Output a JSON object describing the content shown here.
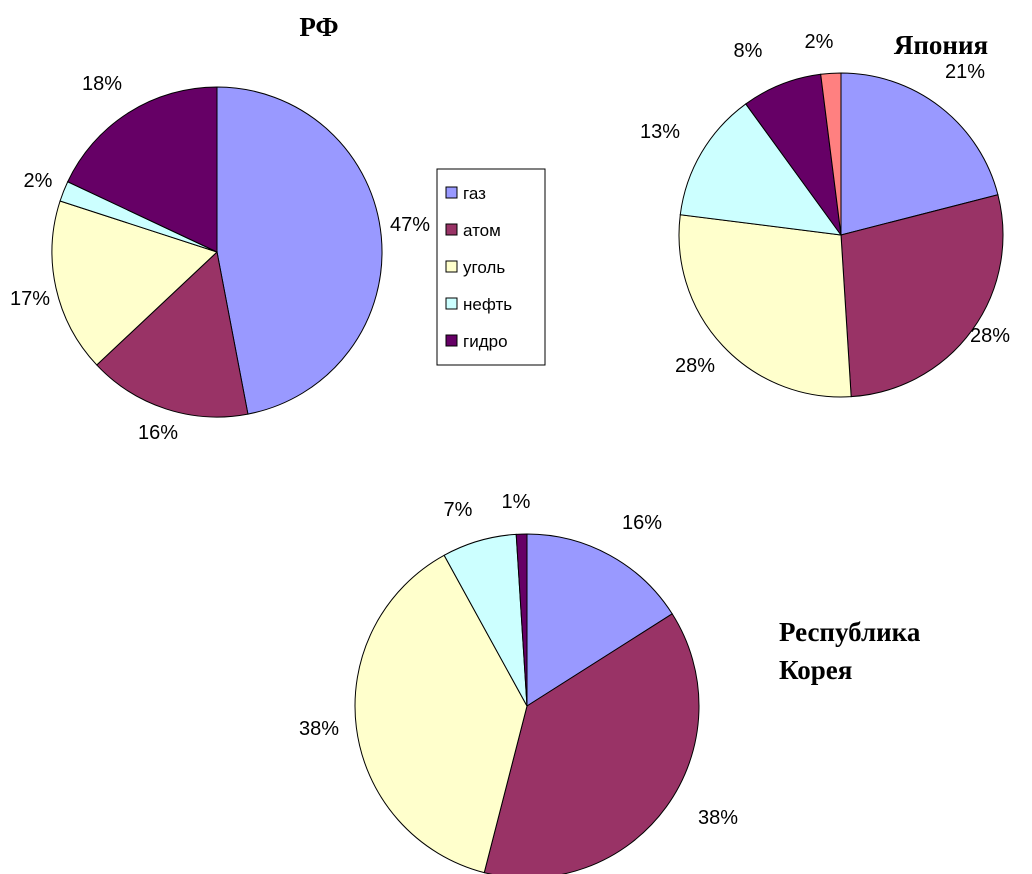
{
  "legend": {
    "entries": [
      {
        "label": "газ",
        "color": "#9999ff"
      },
      {
        "label": "атом",
        "color": "#993366"
      },
      {
        "label": "уголь",
        "color": "#ffffcc"
      },
      {
        "label": "нефть",
        "color": "#ccffff"
      },
      {
        "label": "гидро",
        "color": "#660066"
      }
    ]
  },
  "chart_data": [
    {
      "type": "pie",
      "title": "РФ",
      "categories": [
        "газ",
        "атом",
        "уголь",
        "нефть",
        "гидро"
      ],
      "values": [
        47,
        16,
        17,
        2,
        18
      ],
      "labels": [
        "47%",
        "16%",
        "17%",
        "2%",
        "18%"
      ],
      "colors": [
        "#9999ff",
        "#993366",
        "#ffffcc",
        "#ccffff",
        "#660066"
      ]
    },
    {
      "type": "pie",
      "title": "Япония",
      "categories": [
        "газ",
        "атом",
        "уголь",
        "нефть",
        "гидро",
        ""
      ],
      "values": [
        21,
        28,
        28,
        13,
        8,
        2
      ],
      "labels": [
        "21%",
        "28%",
        "28%",
        "13%",
        "8%",
        "2%"
      ],
      "colors": [
        "#9999ff",
        "#993366",
        "#ffffcc",
        "#ccffff",
        "#660066",
        "#ff8080"
      ]
    },
    {
      "type": "pie",
      "title": "Республика Корея",
      "title_lines": [
        "Республика",
        "Корея"
      ],
      "categories": [
        "газ",
        "атом",
        "уголь",
        "нефть",
        "гидро"
      ],
      "values": [
        16,
        38,
        38,
        7,
        1
      ],
      "labels": [
        "16%",
        "38%",
        "38%",
        "7%",
        "1%"
      ],
      "colors": [
        "#9999ff",
        "#993366",
        "#ffffcc",
        "#ccffff",
        "#660066"
      ]
    }
  ]
}
